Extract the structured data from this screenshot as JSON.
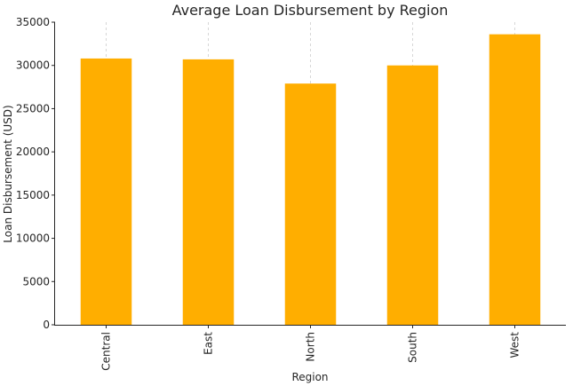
{
  "chart_data": {
    "type": "bar",
    "title": "Average Loan Disbursement by Region",
    "xlabel": "Region",
    "ylabel": "Loan Disbursement (USD)",
    "categories": [
      "Central",
      "East",
      "North",
      "South",
      "West"
    ],
    "values": [
      30800,
      30700,
      27900,
      30000,
      33600
    ],
    "ylim": [
      0,
      35000
    ],
    "yticks": [
      "0",
      "5000",
      "10000",
      "15000",
      "20000",
      "25000",
      "30000",
      "35000"
    ],
    "grid": "x-dashed",
    "legend": "none",
    "bar_color": "#FFAE00"
  }
}
